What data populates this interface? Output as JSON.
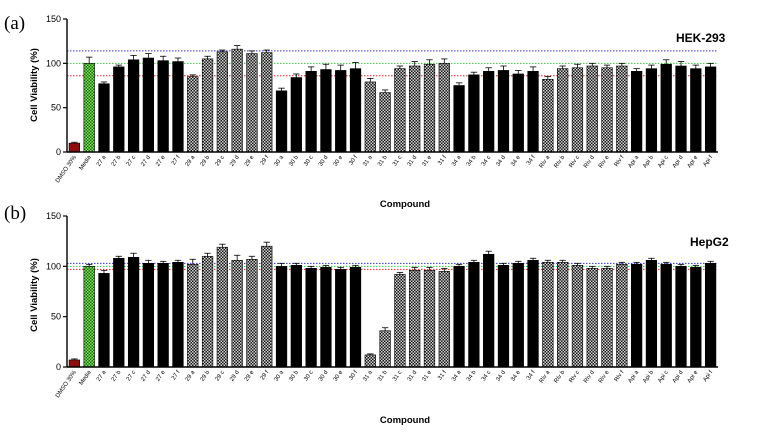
{
  "chart_data": [
    {
      "type": "bar",
      "panel_label": "(a)",
      "cell_line": "HEK-293",
      "xlabel": "Compound",
      "ylabel": "Cell Viability (%)",
      "ylim": [
        0,
        150
      ],
      "yticks": [
        0,
        50,
        100,
        150
      ],
      "grid": false,
      "reference_lines": [
        {
          "value": 114,
          "color": "#3333cc",
          "style": "dotted"
        },
        {
          "value": 100,
          "color": "#33cc33",
          "style": "dotted"
        },
        {
          "value": 86,
          "color": "#dd2222",
          "style": "dotted"
        }
      ],
      "categories": [
        "DMSO 30%",
        "Media",
        "27 a",
        "27 b",
        "27 c",
        "27 d",
        "27 e",
        "27 f",
        "29 a",
        "29 b",
        "29 c",
        "29 d",
        "29 e",
        "29 f",
        "30 a",
        "30 b",
        "30 c",
        "30 d",
        "30 e",
        "30 f",
        "31 a",
        "31 b",
        "31 c",
        "31 d",
        "31 e",
        "31 f",
        "34 a",
        "34 b",
        "34 c",
        "34 d",
        "34 e",
        "34 f",
        "Riv a",
        "Riv b",
        "Riv c",
        "Riv d",
        "Riv e",
        "Riv f",
        "Api a",
        "Api b",
        "Api c",
        "Api d",
        "Api e",
        "Api f"
      ],
      "values": [
        10,
        100,
        77,
        96,
        104,
        106,
        103,
        102,
        85,
        105,
        113,
        116,
        111,
        112,
        69,
        84,
        91,
        93,
        92,
        94,
        79,
        67,
        94,
        97,
        99,
        100,
        75,
        87,
        91,
        92,
        88,
        91,
        82,
        94,
        95,
        97,
        95,
        97,
        91,
        94,
        99,
        97,
        94,
        96
      ],
      "errors": [
        1,
        7,
        2,
        2,
        5,
        5,
        5,
        4,
        2,
        3,
        2,
        4,
        3,
        3,
        3,
        4,
        5,
        6,
        6,
        7,
        4,
        3,
        3,
        5,
        5,
        5,
        3,
        3,
        4,
        5,
        4,
        5,
        3,
        3,
        4,
        3,
        3,
        3,
        3,
        4,
        5,
        5,
        4,
        4
      ],
      "bar_styles": [
        "solid-red",
        "checker-green",
        "solid",
        "solid",
        "solid",
        "solid",
        "solid",
        "solid",
        "checker",
        "checker",
        "checker",
        "checker",
        "checker",
        "checker",
        "solid",
        "solid",
        "solid",
        "solid",
        "solid",
        "solid",
        "checker",
        "checker",
        "checker",
        "checker",
        "checker",
        "checker",
        "solid",
        "solid",
        "solid",
        "solid",
        "solid",
        "solid",
        "checker",
        "checker",
        "checker",
        "checker",
        "checker",
        "checker",
        "solid",
        "solid",
        "solid",
        "solid",
        "solid",
        "solid"
      ]
    },
    {
      "type": "bar",
      "panel_label": "(b)",
      "cell_line": "HepG2",
      "xlabel": "Compound",
      "ylabel": "Cell Viability (%)",
      "ylim": [
        0,
        150
      ],
      "yticks": [
        0,
        50,
        100,
        150
      ],
      "grid": false,
      "reference_lines": [
        {
          "value": 103,
          "color": "#3333cc",
          "style": "dotted"
        },
        {
          "value": 100,
          "color": "#33cc33",
          "style": "dotted"
        },
        {
          "value": 97,
          "color": "#dd2222",
          "style": "dotted"
        }
      ],
      "categories": [
        "DMSO 30%",
        "Media",
        "27 a",
        "27 b",
        "27 c",
        "27 d",
        "27 e",
        "27 f",
        "29 a",
        "29 b",
        "29 c",
        "29 d",
        "29 e",
        "29 f",
        "30 a",
        "30 b",
        "30 c",
        "30 d",
        "30 e",
        "30 f",
        "31 a",
        "31 b",
        "31 c",
        "31 d",
        "31 e",
        "31 f",
        "34 a",
        "34 b",
        "34 c",
        "34 d",
        "34 e",
        "34 f",
        "Riv a",
        "Riv b",
        "Riv c",
        "Riv d",
        "Riv e",
        "Riv f",
        "Api a",
        "Api b",
        "Api c",
        "Api d",
        "Api e",
        "Api f"
      ],
      "values": [
        7,
        100,
        93,
        108,
        109,
        103,
        103,
        104,
        102,
        110,
        119,
        106,
        107,
        120,
        100,
        101,
        98,
        99,
        97,
        99,
        12,
        36,
        92,
        96,
        96,
        95,
        100,
        104,
        112,
        101,
        103,
        106,
        104,
        104,
        101,
        98,
        98,
        102,
        102,
        106,
        102,
        100,
        99,
        103
      ],
      "errors": [
        1,
        2,
        3,
        2,
        4,
        3,
        2,
        2,
        5,
        3,
        3,
        5,
        3,
        4,
        3,
        2,
        2,
        2,
        2,
        2,
        1,
        3,
        2,
        3,
        3,
        3,
        2,
        2,
        3,
        2,
        2,
        2,
        2,
        2,
        2,
        2,
        2,
        2,
        2,
        2,
        2,
        2,
        2,
        2
      ],
      "bar_styles": [
        "solid-red",
        "checker-green",
        "solid",
        "solid",
        "solid",
        "solid",
        "solid",
        "solid",
        "checker",
        "checker",
        "checker",
        "checker",
        "checker",
        "checker",
        "solid",
        "solid",
        "solid",
        "solid",
        "solid",
        "solid",
        "checker",
        "checker",
        "checker",
        "checker",
        "checker",
        "checker",
        "solid",
        "solid",
        "solid",
        "solid",
        "solid",
        "solid",
        "checker",
        "checker",
        "checker",
        "checker",
        "checker",
        "checker",
        "solid",
        "solid",
        "solid",
        "solid",
        "solid",
        "solid"
      ]
    }
  ]
}
